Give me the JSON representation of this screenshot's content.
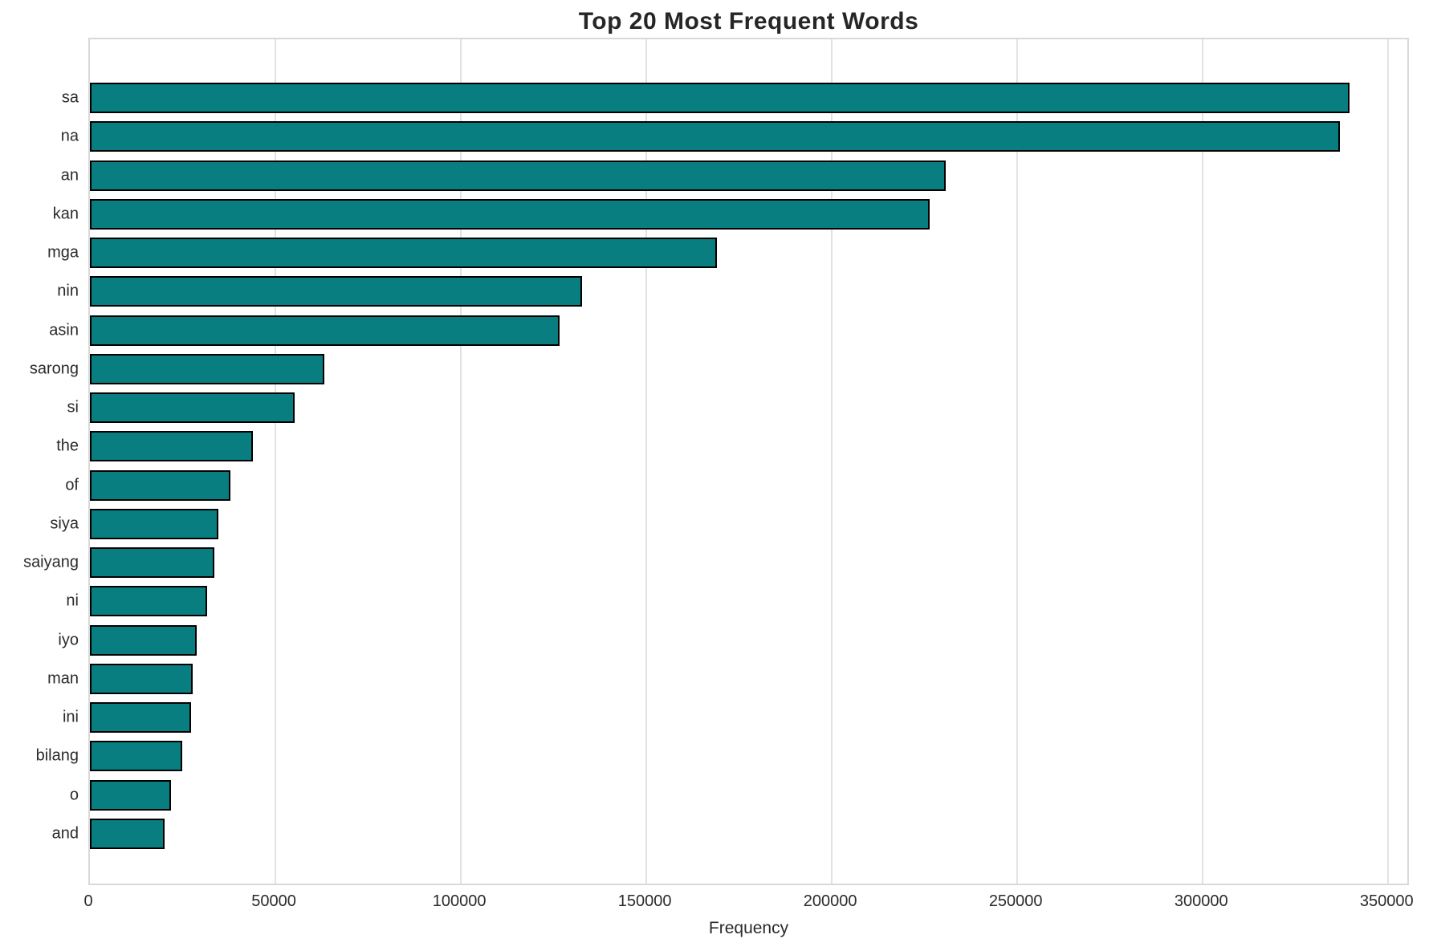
{
  "chart_data": {
    "type": "bar",
    "orientation": "horizontal",
    "title": "Top 20 Most Frequent Words",
    "xlabel": "Frequency",
    "ylabel": "",
    "categories": [
      "sa",
      "na",
      "an",
      "kan",
      "mga",
      "nin",
      "asin",
      "sarong",
      "si",
      "the",
      "of",
      "siya",
      "saiyang",
      "ni",
      "iyo",
      "man",
      "ini",
      "bilang",
      "o",
      "and"
    ],
    "values": [
      339500,
      337000,
      230300,
      226000,
      168600,
      132200,
      126000,
      62500,
      54500,
      43200,
      37200,
      33800,
      32800,
      30900,
      28000,
      26900,
      26500,
      24100,
      21100,
      19400
    ],
    "xlim": [
      0,
      356000
    ],
    "xticks": [
      0,
      50000,
      100000,
      150000,
      200000,
      250000,
      300000,
      350000
    ],
    "grid": true,
    "legend_position": "none",
    "colors": {
      "bar_fill": "#087e80",
      "bar_edge": "#000000",
      "grid": "#e2e2e2",
      "frame": "#d9d9d9",
      "text": "#2b2b2b",
      "title": "#262626",
      "background": "#ffffff"
    }
  }
}
